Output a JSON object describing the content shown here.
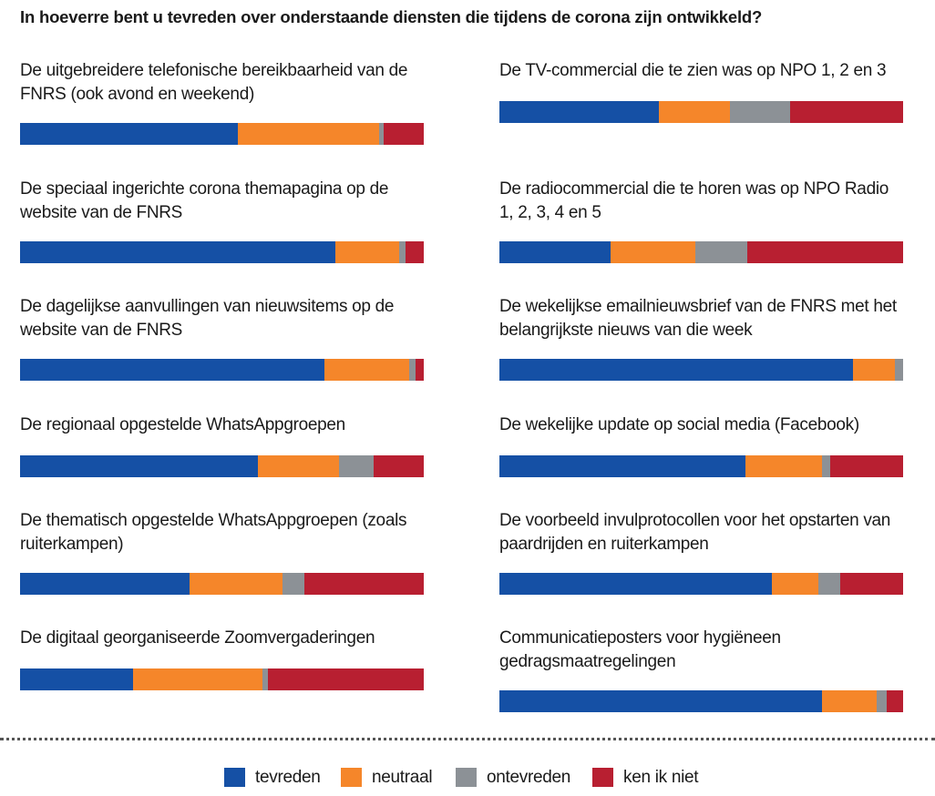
{
  "chart_data": {
    "type": "bar",
    "orientation": "horizontal-stacked-100",
    "title": "In hoeverre bent u tevreden over onderstaande diensten die tijdens de corona zijn ontwikkeld?",
    "series": [
      {
        "name": "tevreden",
        "color": "#1550a5"
      },
      {
        "name": "neutraal",
        "color": "#f5862a"
      },
      {
        "name": "ontevreden",
        "color": "#8c9196"
      },
      {
        "name": "ken ik niet",
        "color": "#b81f31"
      }
    ],
    "items": [
      {
        "label": "De uitgebreidere telefonische bereikbaarheid van de FNRS (ook avond en weekend)",
        "values": [
          54,
          35,
          1,
          10
        ]
      },
      {
        "label": "De speciaal ingerichte corona themapagina op de website van de FNRS",
        "values": [
          78,
          16,
          1.5,
          4.5
        ]
      },
      {
        "label": "De dagelijkse aanvullingen van nieuwsitems op de website van de FNRS",
        "values": [
          75.5,
          21,
          1.5,
          2
        ]
      },
      {
        "label": "De regionaal opgestelde WhatsAppgroepen",
        "values": [
          59,
          20,
          8.5,
          12.5
        ]
      },
      {
        "label": "De thematisch opgestelde WhatsAppgroepen (zoals ruiterkampen)",
        "values": [
          42,
          23,
          5.5,
          29.5
        ]
      },
      {
        "label": "De digitaal georganiseerde Zoomvergaderingen",
        "values": [
          28,
          32,
          1.5,
          38.5
        ]
      },
      {
        "label": "De TV-commercial die te zien was op NPO 1, 2 en 3",
        "values": [
          39.5,
          17.5,
          15,
          28
        ]
      },
      {
        "label": "De radiocommercial die te horen was op NPO Radio 1, 2, 3, 4 en 5",
        "values": [
          27.5,
          21,
          13,
          38.5
        ]
      },
      {
        "label": "De wekelijkse emailnieuwsbrief van de FNRS met het belangrijkste nieuws van die week",
        "values": [
          87.5,
          10.5,
          2,
          0
        ]
      },
      {
        "label": "De wekelijke update op social media (Facebook)",
        "values": [
          61,
          19,
          2,
          18
        ]
      },
      {
        "label": "De voorbeeld invulprotocollen voor het opstarten van paardrijden en ruiterkampen",
        "values": [
          67.5,
          11.5,
          5.5,
          15.5
        ]
      },
      {
        "label": "Communicatieposters voor hygiëneen gedragsmaatregelingen",
        "values": [
          80,
          13.5,
          2.5,
          4
        ]
      }
    ],
    "xlim": [
      0,
      100
    ],
    "grid": false,
    "legend_position": "bottom"
  }
}
